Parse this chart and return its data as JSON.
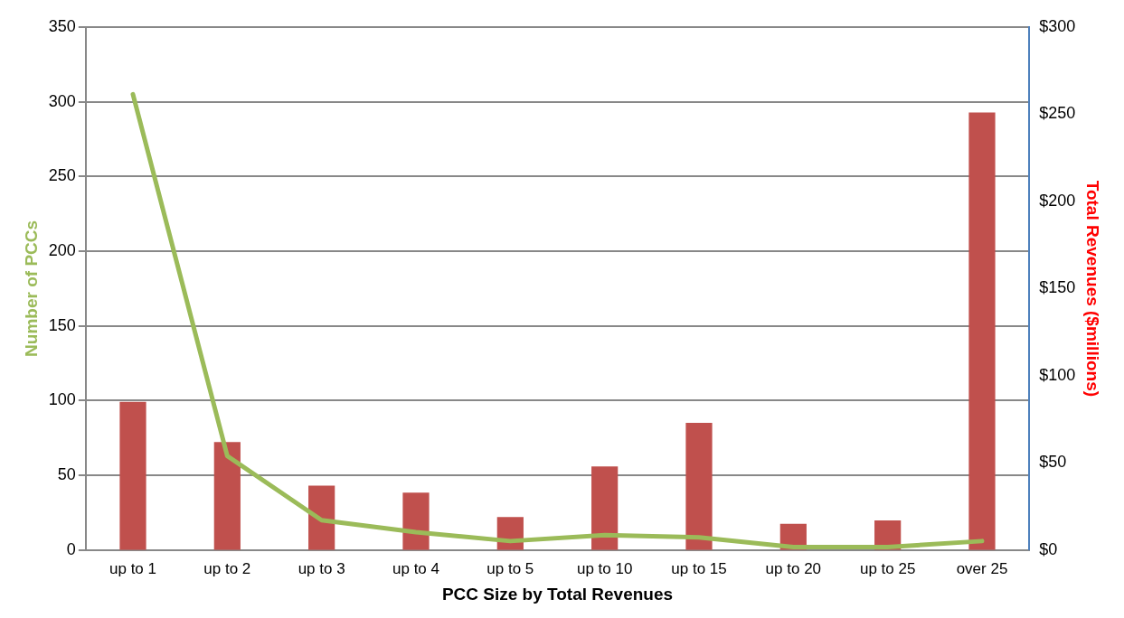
{
  "chart_data": {
    "type": "bar",
    "xlabel": "PCC Size by Total Revenues",
    "ylabel": "Number of PCCs",
    "y2label": "Total Revenues ($millions)",
    "categories": [
      "up to 1",
      "up to 2",
      "up to 3",
      "up to 4",
      "up to 5",
      "up to 10",
      "up to 15",
      "up to 20",
      "up to 25",
      "over 25"
    ],
    "series": [
      {
        "axis": "y2",
        "color": "#c0504d",
        "values": [
          85,
          62,
          37,
          33,
          19,
          48,
          73,
          15,
          17,
          251
        ]
      },
      {
        "type": "line",
        "color": "#9bbb59",
        "values": [
          305,
          63,
          20,
          12,
          6,
          10,
          8.5,
          2,
          2,
          6
        ]
      }
    ],
    "ylim": [
      0,
      350
    ],
    "yticks": [
      0,
      50,
      100,
      150,
      200,
      250,
      300,
      350
    ],
    "y2lim": [
      0,
      300
    ],
    "y2ticks": [
      {
        "value": 0,
        "label": "$0"
      },
      {
        "value": 50,
        "label": "$50"
      },
      {
        "value": 100,
        "label": "$100"
      },
      {
        "value": 150,
        "label": "$150"
      },
      {
        "value": 200,
        "label": "$200"
      },
      {
        "value": 250,
        "label": "$250"
      },
      {
        "value": 300,
        "label": "$300"
      }
    ],
    "grid": "y",
    "legend": false,
    "marker": "none",
    "line_style": "solid"
  }
}
